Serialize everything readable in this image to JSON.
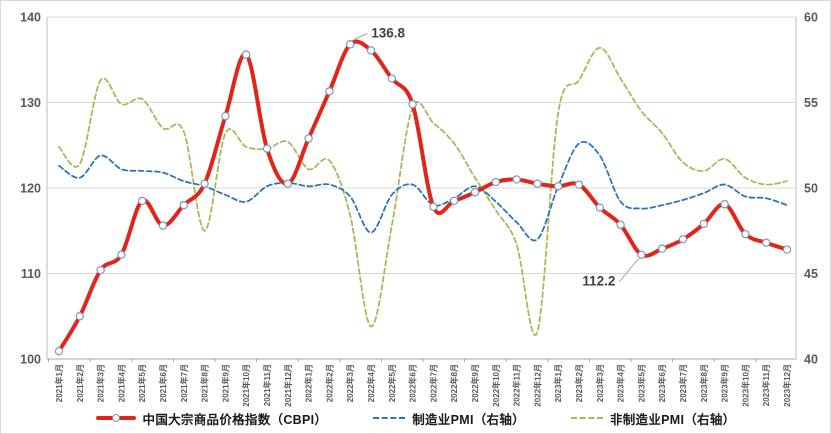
{
  "chart_data": {
    "type": "line",
    "title": "",
    "x_categories": [
      "2021年1月",
      "2021年2月",
      "2021年3月",
      "2021年4月",
      "2021年5月",
      "2021年6月",
      "2021年7月",
      "2021年8月",
      "2021年9月",
      "2021年10月",
      "2021年11月",
      "2021年12月",
      "2022年1月",
      "2022年2月",
      "2022年3月",
      "2022年4月",
      "2022年5月",
      "2022年6月",
      "2022年7月",
      "2022年8月",
      "2022年9月",
      "2022年10月",
      "2022年11月",
      "2022年12月",
      "2023年1月",
      "2023年2月",
      "2023年3月",
      "2023年4月",
      "2023年5月",
      "2023年6月",
      "2023年7月",
      "2023年8月",
      "2023年9月",
      "2023年10月",
      "2023年11月",
      "2023年12月"
    ],
    "series": [
      {
        "name": "中国大宗商品价格指数（CBPI）",
        "axis": "left",
        "color": "#e0261a",
        "line_style": "solid",
        "line_width": 4,
        "markers": true,
        "marker_fill": "#ffffff",
        "marker_ring": "#7e96b8",
        "values": [
          100.9,
          105.0,
          110.4,
          112.2,
          118.5,
          115.6,
          118.0,
          120.5,
          128.4,
          135.6,
          124.6,
          120.5,
          125.8,
          131.3,
          136.8,
          136.1,
          132.8,
          129.8,
          117.8,
          118.5,
          119.5,
          120.7,
          121.0,
          120.5,
          120.2,
          120.4,
          117.7,
          115.7,
          112.2,
          112.9,
          114.0,
          115.8,
          118.1,
          114.6,
          113.6,
          112.8
        ]
      },
      {
        "name": "制造业PMI（右轴）",
        "axis": "right",
        "color": "#2e75b6",
        "line_style": "dashed",
        "line_width": 1.8,
        "markers": false,
        "values": [
          51.3,
          50.6,
          51.9,
          51.1,
          51.0,
          50.9,
          50.4,
          50.1,
          49.6,
          49.2,
          50.1,
          50.3,
          50.1,
          50.2,
          49.5,
          47.4,
          49.6,
          50.2,
          49.0,
          49.4,
          50.1,
          49.2,
          48.0,
          47.0,
          50.1,
          52.6,
          51.9,
          49.2,
          48.8,
          49.0,
          49.3,
          49.7,
          50.2,
          49.5,
          49.4,
          49.0
        ]
      },
      {
        "name": "非制造业PMI（右轴）",
        "axis": "right",
        "color": "#a9b85c",
        "line_style": "dashed",
        "line_width": 1.8,
        "markers": false,
        "values": [
          52.4,
          51.4,
          56.3,
          54.9,
          55.2,
          53.5,
          53.3,
          47.5,
          53.2,
          52.4,
          52.3,
          52.7,
          51.1,
          51.6,
          48.4,
          41.9,
          47.8,
          54.7,
          53.8,
          52.6,
          50.6,
          48.7,
          46.7,
          41.6,
          54.4,
          56.3,
          58.2,
          56.4,
          54.5,
          53.2,
          51.5,
          51.0,
          51.7,
          50.6,
          50.2,
          50.4
        ]
      }
    ],
    "y_left": {
      "min": 100,
      "max": 140,
      "ticks": [
        100,
        110,
        120,
        130,
        140
      ]
    },
    "y_right": {
      "min": 40,
      "max": 60,
      "ticks": [
        40,
        45,
        50,
        55,
        60
      ]
    },
    "grid": true,
    "legend_position": "bottom",
    "annotations": [
      {
        "series": 0,
        "index": 14,
        "label": "136.8",
        "placement": "above-right"
      },
      {
        "series": 0,
        "index": 28,
        "label": "112.2",
        "placement": "below-left"
      }
    ],
    "style_colors": {
      "gridline": "#d9d9d9",
      "axis_line": "#bfbfbf",
      "tick_label": "#595959",
      "annotation_text": "#404040",
      "annotation_leader": "#a6a6a6"
    }
  }
}
